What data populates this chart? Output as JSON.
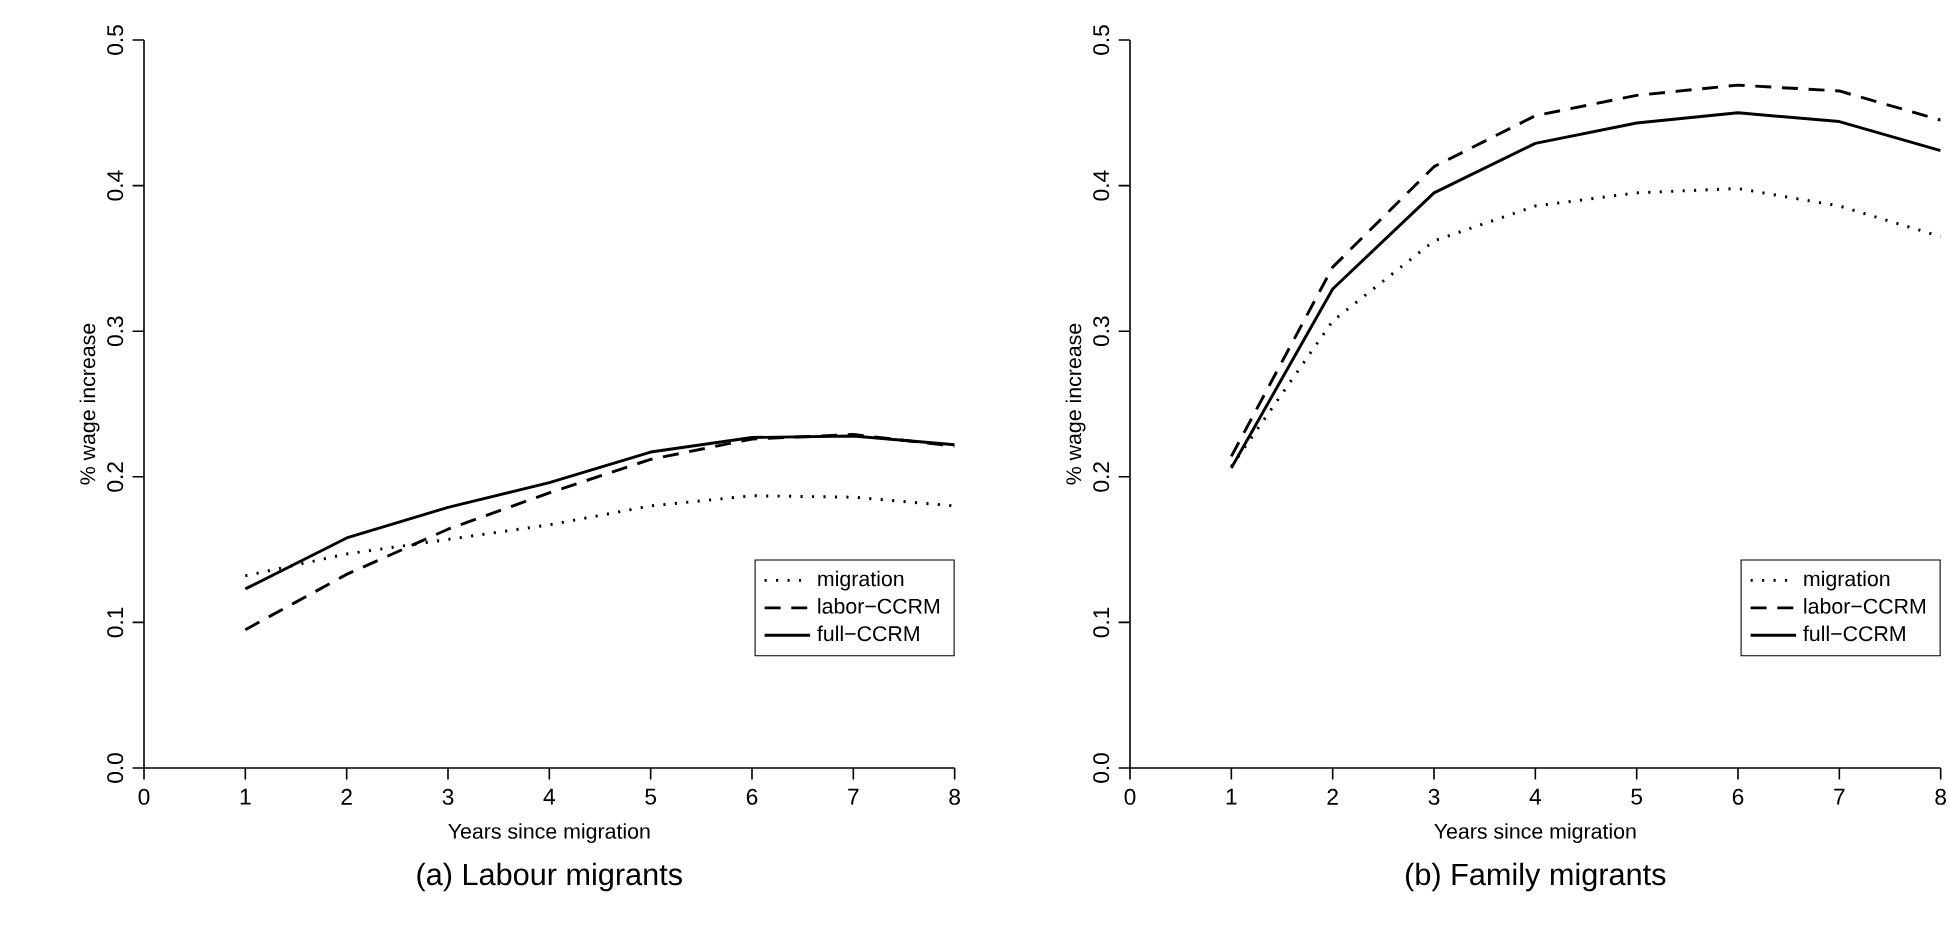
{
  "chart_data": [
    {
      "type": "line",
      "title": "(a)  Labour migrants",
      "xlabel": "Years since migration",
      "ylabel": "% wage increase",
      "xlim": [
        0,
        8
      ],
      "ylim": [
        0,
        0.5
      ],
      "xticks": [
        0,
        1,
        2,
        3,
        4,
        5,
        6,
        7,
        8
      ],
      "yticks": [
        {
          "value": 0,
          "label": "0.0"
        },
        0.1,
        0.2,
        0.3,
        0.4,
        0.5
      ],
      "x": [
        1,
        2,
        3,
        4,
        5,
        6,
        7,
        8
      ],
      "legend": "right",
      "series": [
        {
          "name": "migration",
          "color": "#000000",
          "line_style": "dotted",
          "values": [
            0.132,
            0.147,
            0.157,
            0.167,
            0.18,
            0.187,
            0.186,
            0.18
          ]
        },
        {
          "name": "labor−CCRM",
          "color": "#000000",
          "line_style": "dashed",
          "values": [
            0.095,
            0.133,
            0.164,
            0.189,
            0.212,
            0.226,
            0.229,
            0.221
          ]
        },
        {
          "name": "full−CCRM",
          "color": "#000000",
          "line_style": "solid",
          "values": [
            0.123,
            0.158,
            0.179,
            0.196,
            0.217,
            0.227,
            0.228,
            0.222
          ]
        }
      ]
    },
    {
      "type": "line",
      "title": "(b)  Family migrants",
      "xlabel": "Years since migration",
      "ylabel": "% wage increase",
      "xlim": [
        0,
        8
      ],
      "ylim": [
        0,
        0.5
      ],
      "xticks": [
        0,
        1,
        2,
        3,
        4,
        5,
        6,
        7,
        8
      ],
      "yticks": [
        {
          "value": 0,
          "label": "0.0"
        },
        0.1,
        0.2,
        0.3,
        0.4,
        0.5
      ],
      "x": [
        1,
        2,
        3,
        4,
        5,
        6,
        7,
        8
      ],
      "legend": "right",
      "series": [
        {
          "name": "migration",
          "color": "#000000",
          "line_style": "dotted",
          "values": [
            0.207,
            0.307,
            0.362,
            0.386,
            0.395,
            0.398,
            0.386,
            0.365
          ]
        },
        {
          "name": "labor−CCRM",
          "color": "#000000",
          "line_style": "dashed",
          "values": [
            0.214,
            0.344,
            0.413,
            0.448,
            0.462,
            0.469,
            0.465,
            0.445
          ]
        },
        {
          "name": "full−CCRM",
          "color": "#000000",
          "line_style": "solid",
          "values": [
            0.206,
            0.329,
            0.395,
            0.429,
            0.443,
            0.45,
            0.444,
            0.424
          ]
        }
      ]
    }
  ]
}
